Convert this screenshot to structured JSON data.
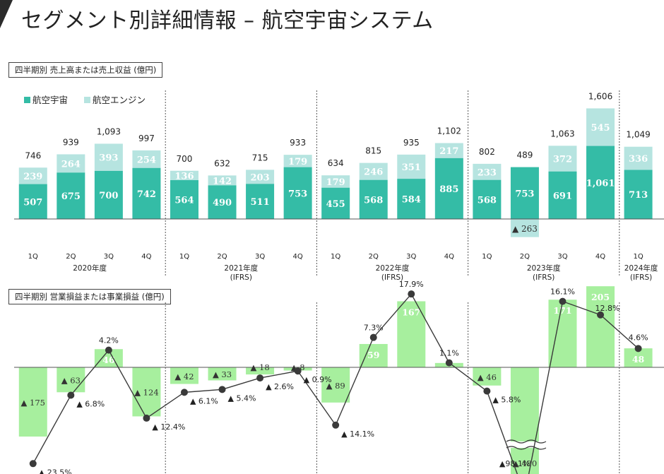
{
  "title": "セグメント別詳細情報 – 航空宇宙システム",
  "colors": {
    "aerospace": "#34bca6",
    "engine": "#b6e4e0",
    "profit_bar": "#a7ef9e",
    "line": "#3a3a3a",
    "accent": "#2b2b2b"
  },
  "chart_data": [
    {
      "type": "bar",
      "title": "四半期別 売上高または売上収益 (億円)",
      "stacked": true,
      "categories": [
        "1Q",
        "2Q",
        "3Q",
        "4Q",
        "1Q",
        "2Q",
        "3Q",
        "4Q",
        "1Q",
        "2Q",
        "3Q",
        "4Q",
        "1Q",
        "2Q",
        "3Q",
        "4Q",
        "1Q"
      ],
      "periods": [
        {
          "label": "2020年度",
          "sub": ""
        },
        {
          "label": "2021年度",
          "sub": "(IFRS)"
        },
        {
          "label": "2022年度",
          "sub": "(IFRS)"
        },
        {
          "label": "2023年度",
          "sub": "(IFRS)"
        },
        {
          "label": "2024年度",
          "sub": "(IFRS)"
        }
      ],
      "series": [
        {
          "name": "航空宇宙",
          "values": [
            507,
            675,
            700,
            742,
            564,
            490,
            511,
            753,
            455,
            568,
            584,
            885,
            568,
            753,
            691,
            1061,
            713
          ],
          "labels": [
            "507",
            "675",
            "700",
            "742",
            "564",
            "490",
            "511",
            "753",
            "455",
            "568",
            "584",
            "885",
            "568",
            "753",
            "691",
            "1,061",
            "713"
          ]
        },
        {
          "name": "航空エンジン",
          "values": [
            239,
            264,
            393,
            254,
            136,
            142,
            203,
            179,
            179,
            246,
            351,
            217,
            233,
            -263,
            372,
            545,
            336
          ],
          "labels": [
            "239",
            "264",
            "393",
            "254",
            "136",
            "142",
            "203",
            "179",
            "179",
            "246",
            "351",
            "217",
            "233",
            "▲ 263",
            "372",
            "545",
            "336"
          ]
        }
      ],
      "totals": [
        "746",
        "939",
        "1,093",
        "997",
        "700",
        "632",
        "715",
        "933",
        "634",
        "815",
        "935",
        "1,102",
        "802",
        "489",
        "1,063",
        "1,606",
        "1,049"
      ],
      "ylim": [
        -300,
        1700
      ]
    },
    {
      "type": "bar+line",
      "title": "四半期別 営業損益または事業損益 (億円)",
      "categories": [
        "1Q",
        "2Q",
        "3Q",
        "4Q",
        "1Q",
        "2Q",
        "3Q",
        "4Q",
        "1Q",
        "2Q",
        "3Q",
        "4Q",
        "1Q",
        "2Q",
        "3Q",
        "4Q",
        "1Q"
      ],
      "profit": {
        "name": "営業損益または事業損益",
        "values": [
          -175,
          -63,
          46,
          -124,
          -42,
          -33,
          -18,
          -8,
          -89,
          59,
          167,
          11,
          -46,
          -480,
          171,
          205,
          48
        ],
        "labels": [
          "▲ 175",
          "▲ 63",
          "46",
          "▲ 124",
          "▲ 42",
          "▲ 33",
          "▲ 18",
          "▲ 8",
          "▲ 89",
          "59",
          "167",
          "11",
          "▲ 46",
          "▲ 480",
          "171",
          "205",
          "48"
        ],
        "axis_break": true
      },
      "margin": {
        "name": "利益率",
        "values": [
          -23.5,
          -6.8,
          4.2,
          -12.4,
          -6.1,
          -5.4,
          -2.6,
          -0.9,
          -14.1,
          7.3,
          17.9,
          1.1,
          -5.8,
          -98.1,
          16.1,
          12.8,
          4.6
        ],
        "labels": [
          "▲ 23.5%",
          "▲ 6.8%",
          "4.2%",
          "▲ 12.4%",
          "▲ 6.1%",
          "▲ 5.4%",
          "▲ 2.6%",
          "▲ 0.9%",
          "▲ 14.1%",
          "7.3%",
          "17.9%",
          "1.1%",
          "▲ 5.8%",
          "▲98.1%",
          "16.1%",
          "12.8%",
          "4.6%"
        ]
      }
    }
  ]
}
